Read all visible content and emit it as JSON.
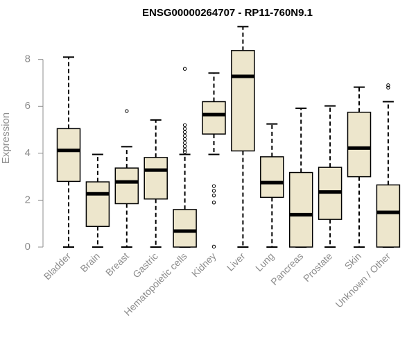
{
  "chart_data": {
    "type": "boxplot",
    "title": "ENSG00000264707 - RP11-760N9.1",
    "xlabel": "",
    "ylabel": "Expression",
    "ylim": [
      0,
      9.5
    ],
    "yticks": [
      0,
      2,
      4,
      6,
      8
    ],
    "box_fill": "#ede6cc",
    "categories": [
      "Bladder",
      "Brain",
      "Breast",
      "Gastric",
      "Hematopoietic cells",
      "Kidney",
      "Liver",
      "Lung",
      "Pancreas",
      "Prostate",
      "Skin",
      "Unknown / Other"
    ],
    "boxes": [
      {
        "whisker_low": 0,
        "q1": 2.8,
        "median": 4.12,
        "q3": 5.05,
        "whisker_high": 8.1,
        "outliers": []
      },
      {
        "whisker_low": 0,
        "q1": 0.88,
        "median": 2.27,
        "q3": 2.78,
        "whisker_high": 3.95,
        "outliers": []
      },
      {
        "whisker_low": 0,
        "q1": 1.85,
        "median": 2.78,
        "q3": 3.37,
        "whisker_high": 4.28,
        "outliers": [
          5.8
        ]
      },
      {
        "whisker_low": 0,
        "q1": 2.05,
        "median": 3.28,
        "q3": 3.82,
        "whisker_high": 5.42,
        "outliers": []
      },
      {
        "whisker_low": 0,
        "q1": 0,
        "median": 0.68,
        "q3": 1.6,
        "whisker_high": 3.95,
        "outliers": [
          4.05,
          4.15,
          4.3,
          4.45,
          4.6,
          4.75,
          4.9,
          5.05,
          5.2,
          7.6
        ]
      },
      {
        "whisker_low": 3.95,
        "q1": 4.82,
        "median": 5.65,
        "q3": 6.2,
        "whisker_high": 7.42,
        "outliers": [
          1.9,
          2.2,
          2.4,
          2.6,
          0.02
        ]
      },
      {
        "whisker_low": 0,
        "q1": 4.1,
        "median": 7.28,
        "q3": 8.38,
        "whisker_high": 9.4,
        "outliers": []
      },
      {
        "whisker_low": 0,
        "q1": 2.12,
        "median": 2.75,
        "q3": 3.85,
        "whisker_high": 5.25,
        "outliers": []
      },
      {
        "whisker_low": 0,
        "q1": 0,
        "median": 1.38,
        "q3": 3.18,
        "whisker_high": 5.92,
        "outliers": []
      },
      {
        "whisker_low": 0,
        "q1": 1.18,
        "median": 2.35,
        "q3": 3.4,
        "whisker_high": 6.02,
        "outliers": []
      },
      {
        "whisker_low": 0,
        "q1": 3.0,
        "median": 4.22,
        "q3": 5.75,
        "whisker_high": 6.82,
        "outliers": []
      },
      {
        "whisker_low": 0,
        "q1": 0,
        "median": 1.48,
        "q3": 2.65,
        "whisker_high": 6.2,
        "outliers": [
          6.8,
          6.9
        ]
      }
    ]
  }
}
